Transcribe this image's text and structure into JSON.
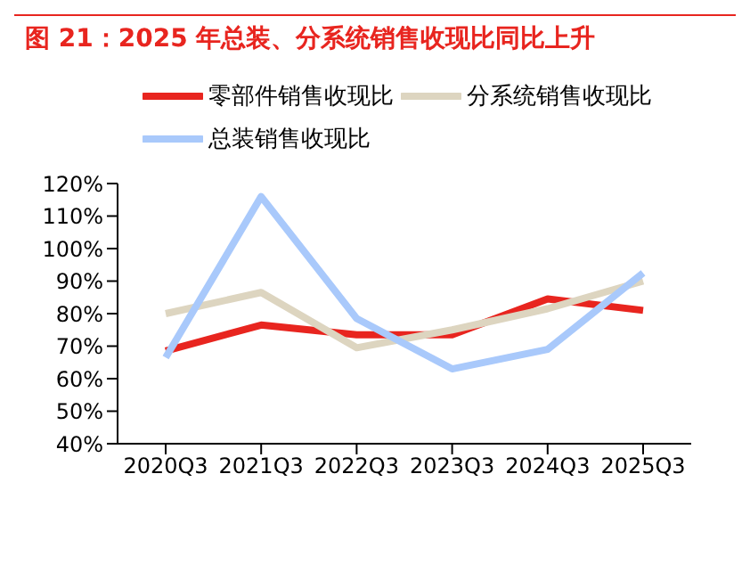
{
  "chart_data": {
    "type": "line",
    "title": "图 21：2025 年总装、分系统销售收现比同比上升",
    "categories": [
      "2020Q3",
      "2021Q3",
      "2022Q3",
      "2023Q3",
      "2024Q3",
      "2025Q3"
    ],
    "series": [
      {
        "name": "零部件销售收现比",
        "color": "#e8251f",
        "values": [
          68.5,
          76.5,
          73.5,
          73.5,
          84.5,
          81
        ]
      },
      {
        "name": "分系统销售收现比",
        "color": "#ddd5c0",
        "values": [
          80,
          86.5,
          69.5,
          75,
          81.5,
          90
        ]
      },
      {
        "name": "总装销售收现比",
        "color": "#a9c9fb",
        "values": [
          66.5,
          116,
          78.5,
          63,
          69,
          92.5
        ]
      }
    ],
    "ylim": [
      40,
      120
    ],
    "yticks": [
      {
        "value": 40,
        "label": "40%"
      },
      {
        "value": 50,
        "label": "50%"
      },
      {
        "value": 60,
        "label": "60%"
      },
      {
        "value": 70,
        "label": "70%"
      },
      {
        "value": 80,
        "label": "80%"
      },
      {
        "value": 90,
        "label": "90%"
      },
      {
        "value": 100,
        "label": "100%"
      },
      {
        "value": 110,
        "label": "110%"
      },
      {
        "value": 120,
        "label": "120%"
      }
    ],
    "grid": false,
    "legend": "top",
    "marker": "none",
    "line_style": "solid"
  }
}
